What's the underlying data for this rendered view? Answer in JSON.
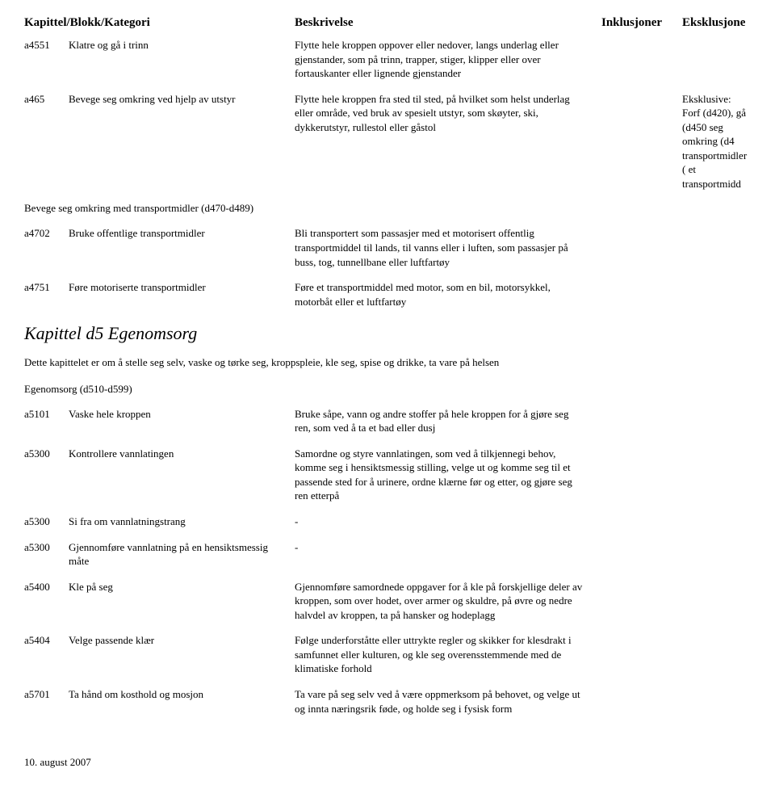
{
  "header": {
    "code": "Kapittel/Blokk/Kategori",
    "desc": "Beskrivelse",
    "incl": "Inklusjoner",
    "excl": "Eksklusjone"
  },
  "rows1": [
    {
      "code": "a4551",
      "cat": "Klatre og gå i trinn",
      "desc": "Flytte hele kroppen oppover eller nedover, langs underlag eller gjenstander, som på trinn, trapper, stiger, klipper eller over fortauskanter eller lignende gjenstander",
      "excl": ""
    },
    {
      "code": "a465",
      "cat": "Bevege seg omkring ved hjelp av utstyr",
      "desc": "Flytte hele kroppen fra sted til sted, på hvilket som helst underlag eller område, ved bruk av spesielt utstyr, som skøyter, ski, dykkerutstyr, rullestol eller gåstol",
      "excl": "Eksklusive: Forf (d420), gå (d450 seg omkring (d4 transportmidler ( et transportmidd"
    }
  ],
  "section1": "Bevege seg omkring med transportmidler (d470-d489)",
  "rows2": [
    {
      "code": "a4702",
      "cat": "Bruke offentlige transportmidler",
      "desc": "Bli transportert som passasjer med et motorisert offentlig transportmiddel til lands, til vanns eller i luften, som passasjer på buss, tog, tunnellbane eller luftfartøy",
      "excl": ""
    },
    {
      "code": "a4751",
      "cat": "Føre motoriserte transportmidler",
      "desc": "Føre et transportmiddel med motor, som en bil, motorsykkel, motorbåt eller et luftfartøy",
      "excl": ""
    }
  ],
  "chapter": {
    "title": "Kapittel d5 Egenomsorg",
    "desc": "Dette kapittelet er om å stelle seg selv, vaske og tørke seg, kroppspleie, kle seg, spise og drikke, ta vare på helsen"
  },
  "section2": "Egenomsorg (d510-d599)",
  "rows3": [
    {
      "code": "a5101",
      "cat": "Vaske hele kroppen",
      "desc": "Bruke såpe, vann og andre stoffer på hele kroppen for å gjøre seg ren, som ved å ta et bad eller dusj"
    },
    {
      "code": "a5300",
      "cat": "Kontrollere vannlatingen",
      "desc": "Samordne og styre vannlatingen, som ved å tilkjennegi behov, komme seg i hensiktsmessig stilling, velge ut og komme seg til et passende sted for å urinere, ordne klærne før og etter, og gjøre seg ren etterpå"
    },
    {
      "code": "a5300",
      "cat": "Si fra om vannlatningstrang",
      "desc": "-"
    },
    {
      "code": "a5300",
      "cat": "Gjennomføre vannlatning på en hensiktsmessig måte",
      "desc": "-"
    },
    {
      "code": "a5400",
      "cat": "Kle på seg",
      "desc": "Gjennomføre samordnede oppgaver for å kle på forskjellige deler av kroppen, som over hodet, over armer og skuldre, på øvre og nedre halvdel av kroppen, ta på hansker og hodeplagg"
    },
    {
      "code": "a5404",
      "cat": "Velge passende klær",
      "desc": "Følge underforståtte eller uttrykte regler og skikker for klesdrakt i samfunnet eller kulturen, og kle seg overensstemmende med de klimatiske forhold"
    },
    {
      "code": "a5701",
      "cat": "Ta hånd om kosthold og mosjon",
      "desc": "Ta vare på seg selv ved å være oppmerksom på behovet, og velge ut og innta næringsrik føde, og holde seg i fysisk form"
    }
  ],
  "footer": "10. august 2007"
}
